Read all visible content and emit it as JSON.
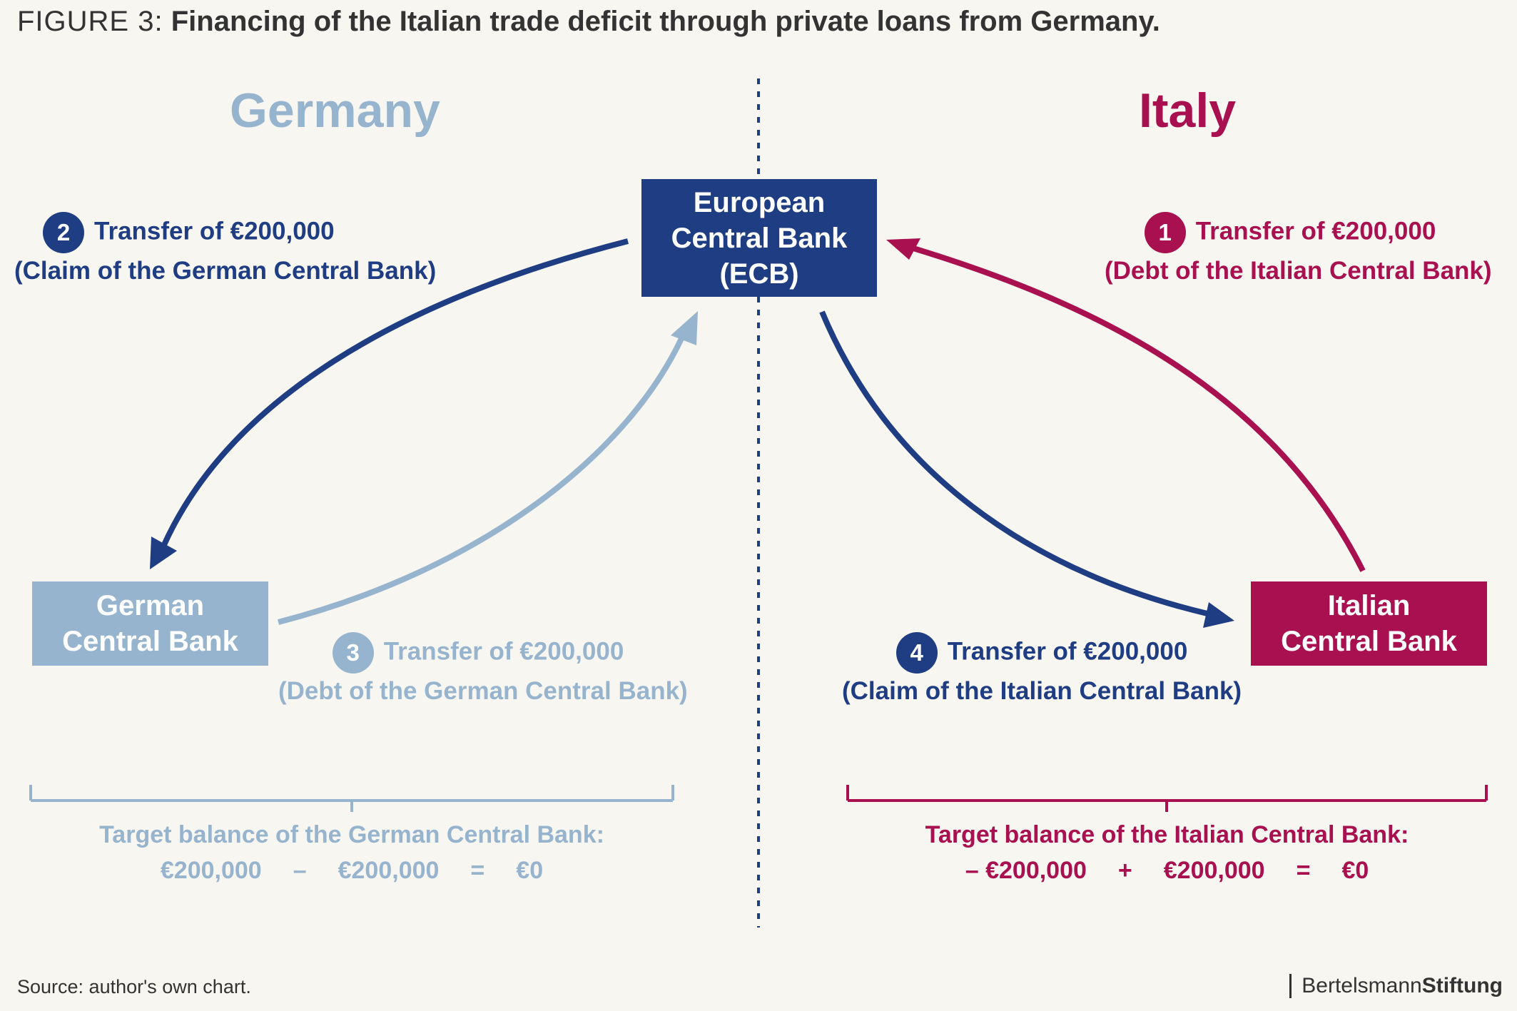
{
  "title": {
    "prefix": "FIGURE 3:",
    "text": "Financing of the Italian trade deficit through private loans from Germany."
  },
  "colors": {
    "dark_blue": "#1f3d82",
    "light_blue": "#97b4cf",
    "crimson": "#a8104f",
    "background": "#f8f6f1"
  },
  "columns": {
    "left": "Germany",
    "right": "Italy"
  },
  "nodes": {
    "ecb": [
      "European",
      "Central Bank",
      "(ECB)"
    ],
    "german": [
      "German",
      "Central Bank"
    ],
    "italian": [
      "Italian",
      "Central Bank"
    ]
  },
  "transfers": [
    {
      "number": "1",
      "line1": "Transfer of €200,000",
      "line2": "(Debt of the Italian Central Bank)",
      "from": "Italian Central Bank",
      "to": "European Central Bank (ECB)"
    },
    {
      "number": "2",
      "line1": "Transfer of €200,000",
      "line2": "(Claim of the German Central Bank)",
      "from": "European Central Bank (ECB)",
      "to": "German Central Bank"
    },
    {
      "number": "3",
      "line1": "Transfer of €200,000",
      "line2": "(Debt of the German Central Bank)",
      "from": "German Central Bank",
      "to": "European Central Bank (ECB)"
    },
    {
      "number": "4",
      "line1": "Transfer of €200,000",
      "line2": "(Claim of the Italian Central Bank)",
      "from": "European Central Bank (ECB)",
      "to": "Italian Central Bank"
    }
  ],
  "balances": {
    "german": {
      "label": "Target balance of the German Central Bank:",
      "terms": [
        "€200,000",
        "–",
        "€200,000",
        "=",
        "€0"
      ]
    },
    "italian": {
      "label": "Target balance of the Italian Central Bank:",
      "terms": [
        "– €200,000",
        "+",
        "€200,000",
        "=",
        "€0"
      ]
    }
  },
  "source": "Source: author's own chart.",
  "brand": {
    "part1": "Bertelsmann",
    "part2": "Stiftung"
  }
}
